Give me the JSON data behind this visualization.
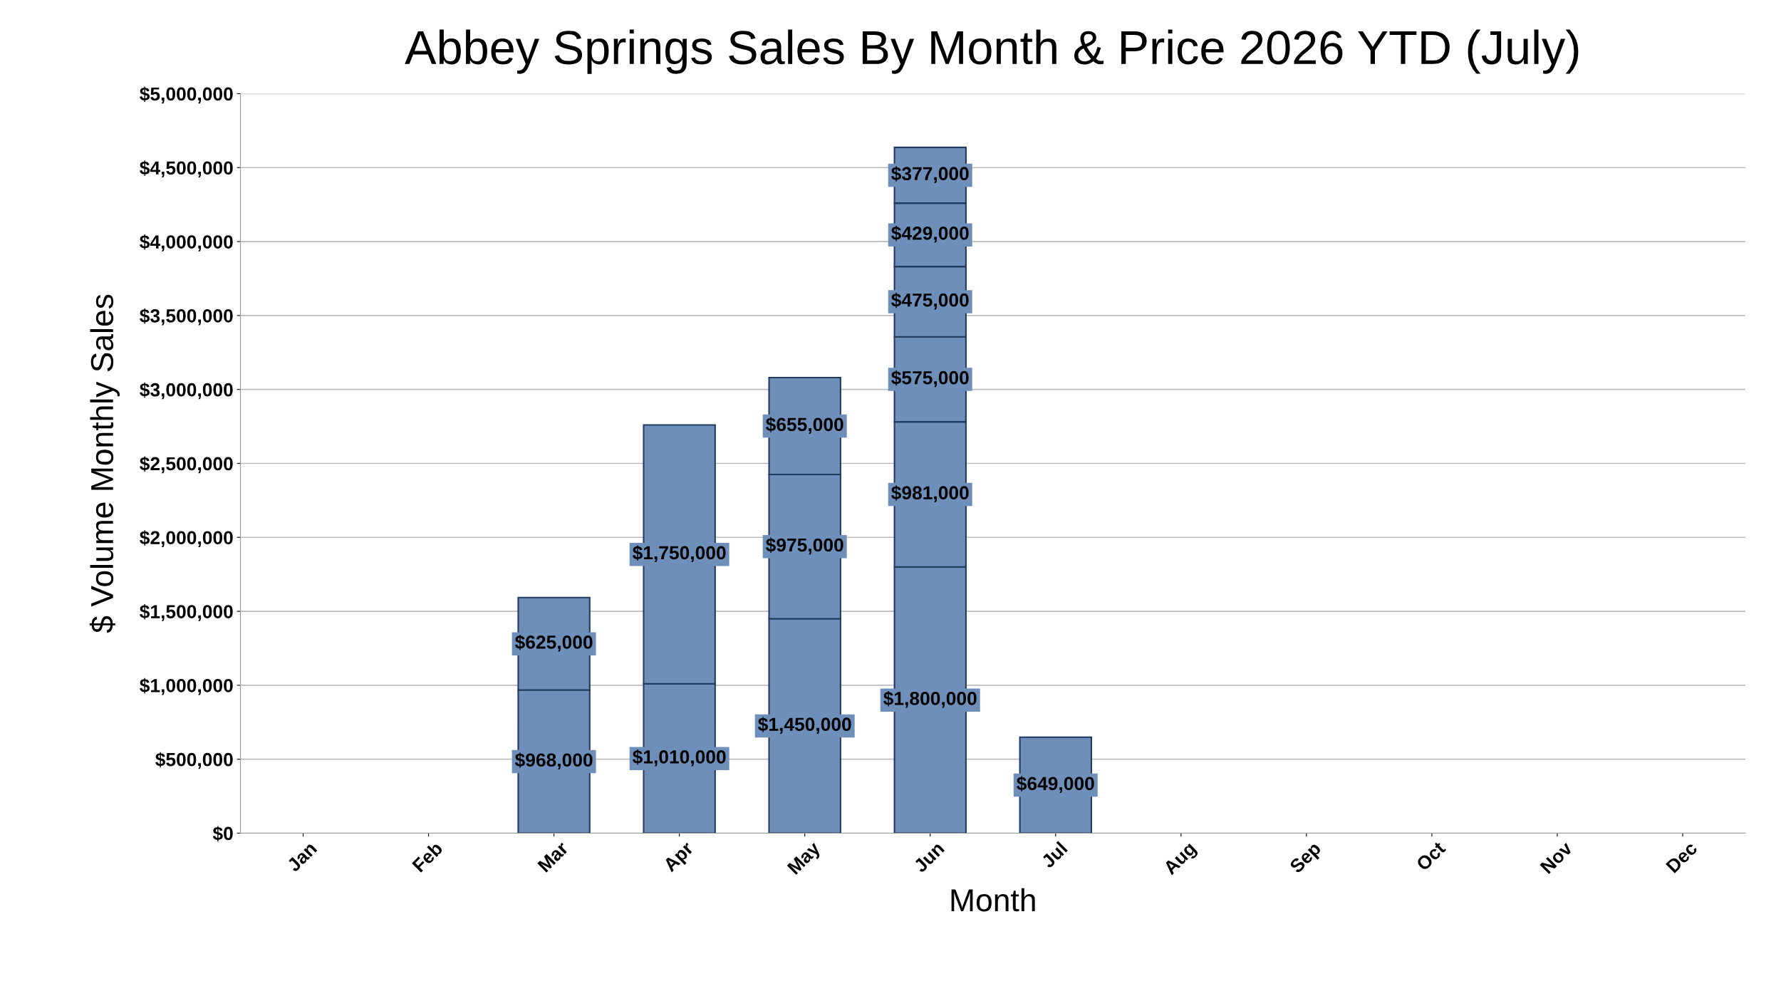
{
  "chart_data": {
    "type": "bar",
    "title": "Abbey Springs Sales By Month & Price 2026 YTD (July)",
    "xlabel": "Month",
    "ylabel": "$ Volume Monthly Sales",
    "categories": [
      "Jan",
      "Feb",
      "Mar",
      "Apr",
      "May",
      "Jun",
      "Jul",
      "Aug",
      "Sep",
      "Oct",
      "Nov",
      "Dec"
    ],
    "stacked": true,
    "data_labels": false,
    "series": [
      {
        "color": "#6f8fbb",
        "values": [
          null,
          null,
          968000,
          1010000,
          1450000,
          1800000,
          649000,
          null,
          null,
          null,
          null,
          null
        ],
        "value_labels": [
          null,
          null,
          "$968,000",
          "$1,010,000",
          "$1,450,000",
          "$1,800,000",
          "$649,000",
          null,
          null,
          null,
          null,
          null
        ]
      },
      {
        "color": "#6f8fbb",
        "values": [
          null,
          null,
          625000,
          1750000,
          975000,
          981000,
          null,
          null,
          null,
          null,
          null,
          null
        ],
        "value_labels": [
          null,
          null,
          "$625,000",
          "$1,750,000",
          "$975,000",
          "$981,000",
          null,
          null,
          null,
          null,
          null,
          null
        ]
      },
      {
        "color": "#6f8fbb",
        "values": [
          null,
          null,
          null,
          null,
          655000,
          575000,
          null,
          null,
          null,
          null,
          null,
          null
        ],
        "value_labels": [
          null,
          null,
          null,
          null,
          "$655,000",
          "$575,000",
          null,
          null,
          null,
          null,
          null,
          null
        ]
      },
      {
        "color": "#6f8fbb",
        "values": [
          null,
          null,
          null,
          null,
          null,
          475000,
          null,
          null,
          null,
          null,
          null,
          null
        ],
        "value_labels": [
          null,
          null,
          null,
          null,
          null,
          "$475,000",
          null,
          null,
          null,
          null,
          null,
          null
        ]
      },
      {
        "color": "#6f8fbb",
        "values": [
          null,
          null,
          null,
          null,
          null,
          429000,
          null,
          null,
          null,
          null,
          null,
          null
        ],
        "value_labels": [
          null,
          null,
          null,
          null,
          null,
          "$429,000",
          null,
          null,
          null,
          null,
          null,
          null
        ]
      },
      {
        "color": "#6f8fbb",
        "values": [
          null,
          null,
          null,
          null,
          null,
          377000,
          null,
          null,
          null,
          null,
          null,
          null
        ],
        "value_labels": [
          null,
          null,
          null,
          null,
          null,
          "$377,000",
          null,
          null,
          null,
          null,
          null,
          null
        ]
      }
    ],
    "ylim": [
      0,
      5000000
    ],
    "yticks": [
      {
        "value": 0,
        "label": "$0"
      },
      {
        "value": 500000,
        "label": "$500,000"
      },
      {
        "value": 1000000,
        "label": "$1,000,000"
      },
      {
        "value": 1500000,
        "label": "$1,500,000"
      },
      {
        "value": 2000000,
        "label": "$2,000,000"
      },
      {
        "value": 2500000,
        "label": "$2,500,000"
      },
      {
        "value": 3000000,
        "label": "$3,000,000"
      },
      {
        "value": 3500000,
        "label": "$3,500,000"
      },
      {
        "value": 4000000,
        "label": "$4,000,000"
      },
      {
        "value": 4500000,
        "label": "$4,500,000"
      },
      {
        "value": 5000000,
        "label": "$5,000,000"
      }
    ],
    "grid": "y"
  }
}
